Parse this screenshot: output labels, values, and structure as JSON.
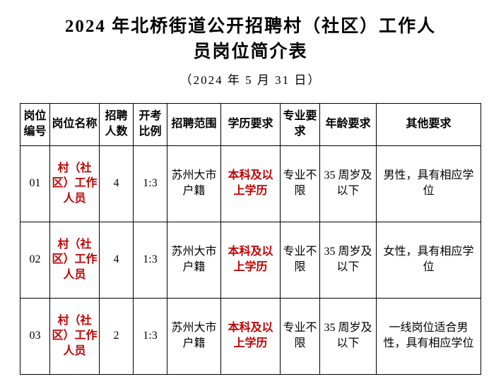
{
  "title_line1": "2024 年北桥街道公开招聘村（社区）工作人",
  "title_line2": "员岗位简介表",
  "date_text": "（2024 年 5 月 31 日）",
  "columns": [
    "岗位编号",
    "岗位名称",
    "招聘人数",
    "开考比例",
    "招聘范围",
    "学历要求",
    "专业要求",
    "年龄要求",
    "其他要求"
  ],
  "rows": [
    {
      "id": "01",
      "name": "村（社区）工作人员",
      "num": "4",
      "ratio": "1:3",
      "scope": "苏州大市户籍",
      "edu": "本科及以上学历",
      "major": "专业不限",
      "age": "35 周岁及以下",
      "other": "男性，具有相应学位"
    },
    {
      "id": "02",
      "name": "村（社区）工作人员",
      "num": "4",
      "ratio": "1:3",
      "scope": "苏州大市户籍",
      "edu": "本科及以上学历",
      "major": "专业不限",
      "age": "35 周岁及以下",
      "other": "女性，具有相应学位"
    },
    {
      "id": "03",
      "name": "村（社区）工作人员",
      "num": "2",
      "ratio": "1:3",
      "scope": "苏州大市户籍",
      "edu": "本科及以上学历",
      "major": "专业不限",
      "age": "35 周岁及以下",
      "other": "一线岗位适合男性，具有相应学位"
    }
  ]
}
